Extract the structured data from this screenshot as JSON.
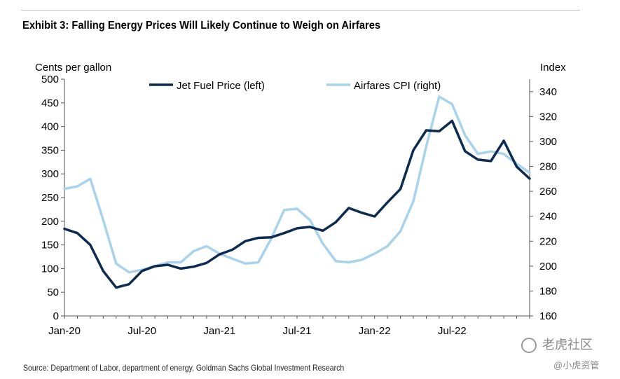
{
  "title": "Exhibit 3: Falling Energy Prices Will Likely Continue to Weigh on Airfares",
  "source": "Source: Department of Labor, department of energy, Goldman Sachs Global Investment Research",
  "watermark": {
    "main": "老虎社区",
    "sub": "@小虎资管",
    "icon": "tiger-logo-icon"
  },
  "chart_data": {
    "type": "line",
    "title": "Exhibit 3: Falling Energy Prices Will Likely Continue to Weigh on Airfares",
    "ylabel_left": "Cents per gallon",
    "ylabel_right": "Index",
    "ylim_left": [
      0,
      500
    ],
    "ylim_right": [
      160,
      350
    ],
    "yticks_left": [
      "0",
      "50",
      "100",
      "150",
      "200",
      "250",
      "300",
      "350",
      "400",
      "450",
      "500"
    ],
    "yticks_right": [
      "160",
      "180",
      "200",
      "220",
      "240",
      "260",
      "280",
      "300",
      "320",
      "340"
    ],
    "x_ticks": [
      "Jan-20",
      "Jul-20",
      "Jan-21",
      "Jul-21",
      "Jan-22",
      "Jul-22"
    ],
    "legend_position": "top",
    "grid": false,
    "x": [
      "Jan-20",
      "Feb-20",
      "Mar-20",
      "Apr-20",
      "May-20",
      "Jun-20",
      "Jul-20",
      "Aug-20",
      "Sep-20",
      "Oct-20",
      "Nov-20",
      "Dec-20",
      "Jan-21",
      "Feb-21",
      "Mar-21",
      "Apr-21",
      "May-21",
      "Jun-21",
      "Jul-21",
      "Aug-21",
      "Sep-21",
      "Oct-21",
      "Nov-21",
      "Dec-21",
      "Jan-22",
      "Feb-22",
      "Mar-22",
      "Apr-22",
      "May-22",
      "Jun-22",
      "Jul-22",
      "Aug-22",
      "Sep-22",
      "Oct-22",
      "Nov-22",
      "Dec-22",
      "Jan-23"
    ],
    "series": [
      {
        "name": "Jet Fuel Price (left)",
        "axis": "left",
        "color": "#0d2b4e",
        "values": [
          184,
          175,
          150,
          95,
          60,
          67,
          95,
          105,
          108,
          100,
          104,
          112,
          130,
          140,
          158,
          165,
          166,
          175,
          185,
          188,
          180,
          198,
          228,
          218,
          210,
          240,
          268,
          350,
          392,
          390,
          412,
          348,
          330,
          327,
          370,
          315,
          290
        ]
      },
      {
        "name": "Airfares CPI (right)",
        "axis": "right",
        "color": "#a9d2ec",
        "values": [
          262,
          264,
          270,
          237,
          202,
          195,
          197,
          200,
          203,
          203,
          212,
          216,
          210,
          206,
          202,
          203,
          222,
          245,
          246,
          237,
          218,
          204,
          203,
          205,
          210,
          216,
          228,
          252,
          296,
          336,
          330,
          305,
          290,
          292,
          290,
          282,
          275
        ]
      }
    ]
  }
}
